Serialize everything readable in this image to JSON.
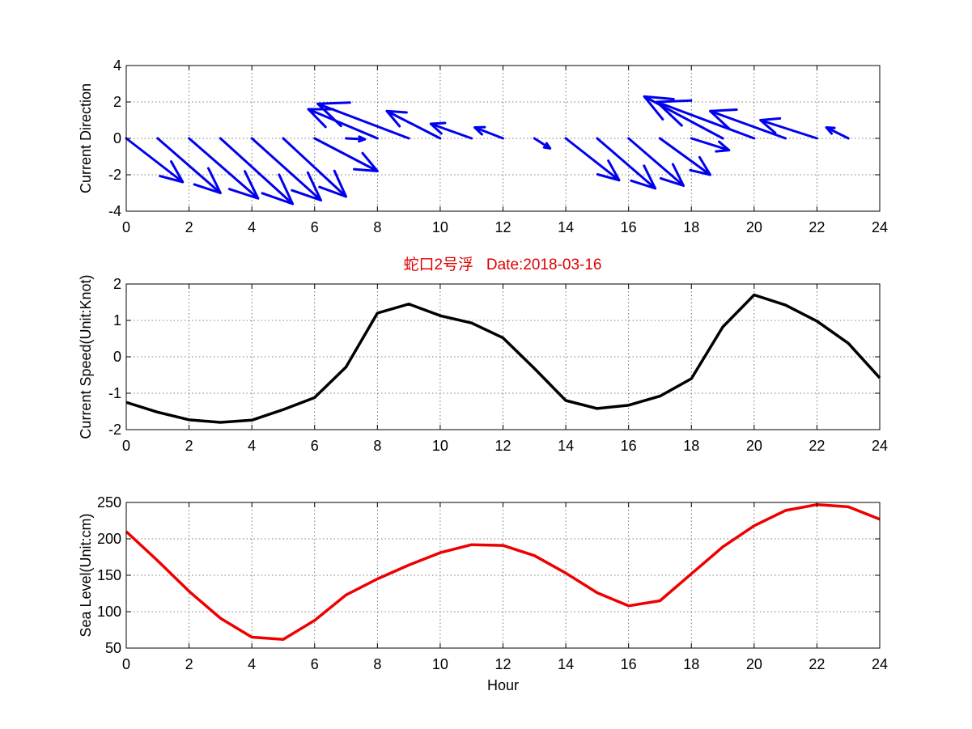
{
  "figure_title": "蛇口2号浮   Date:2018-03-16",
  "colors": {
    "direction": "#0000ee",
    "speed": "#000000",
    "sea_level": "#ee0000",
    "title": "#dd0000",
    "grid": "#555555"
  },
  "chart_data": [
    {
      "type": "quiver",
      "ylabel": "Current Direction",
      "xlim": [
        0,
        24
      ],
      "ylim": [
        -4,
        4
      ],
      "x_ticks": [
        "0",
        "2",
        "4",
        "6",
        "8",
        "10",
        "12",
        "14",
        "16",
        "18",
        "20",
        "22",
        "24"
      ],
      "y_ticks": [
        "4",
        "2",
        "0",
        "-2",
        "-4"
      ],
      "grid": true,
      "vectors": [
        {
          "x": 0,
          "u": 1.8,
          "v": -2.4
        },
        {
          "x": 1,
          "u": 2.0,
          "v": -3.0
        },
        {
          "x": 2,
          "u": 2.2,
          "v": -3.3
        },
        {
          "x": 3,
          "u": 2.3,
          "v": -3.6
        },
        {
          "x": 4,
          "u": 2.2,
          "v": -3.4
        },
        {
          "x": 5,
          "u": 2.0,
          "v": -3.2
        },
        {
          "x": 6,
          "u": 2.0,
          "v": -1.8
        },
        {
          "x": 7,
          "u": 0.6,
          "v": -0.05
        },
        {
          "x": 8,
          "u": -2.2,
          "v": 1.6
        },
        {
          "x": 9,
          "u": -2.9,
          "v": 1.9
        },
        {
          "x": 10,
          "u": -1.7,
          "v": 1.5
        },
        {
          "x": 11,
          "u": -1.3,
          "v": 0.8
        },
        {
          "x": 12,
          "u": -0.9,
          "v": 0.6
        },
        {
          "x": 13,
          "u": 0.5,
          "v": -0.55
        },
        {
          "x": 14,
          "u": 1.7,
          "v": -2.3
        },
        {
          "x": 15,
          "u": 1.85,
          "v": -2.75
        },
        {
          "x": 16,
          "u": 1.75,
          "v": -2.6
        },
        {
          "x": 17,
          "u": 1.6,
          "v": -2.0
        },
        {
          "x": 18,
          "u": 1.2,
          "v": -0.65
        },
        {
          "x": 19,
          "u": -2.5,
          "v": 2.3
        },
        {
          "x": 20,
          "u": -3.1,
          "v": 2.0
        },
        {
          "x": 21,
          "u": -2.4,
          "v": 1.5
        },
        {
          "x": 22,
          "u": -1.8,
          "v": 1.0
        },
        {
          "x": 23,
          "u": -0.7,
          "v": 0.6
        }
      ]
    },
    {
      "type": "line",
      "ylabel": "Current Speed(Unit:Knot)",
      "xlim": [
        0,
        24
      ],
      "ylim": [
        -2,
        2
      ],
      "x_ticks": [
        "0",
        "2",
        "4",
        "6",
        "8",
        "10",
        "12",
        "14",
        "16",
        "18",
        "20",
        "22",
        "24"
      ],
      "y_ticks": [
        "2",
        "1",
        "0",
        "-1",
        "-2"
      ],
      "grid": true,
      "x": [
        0,
        1,
        2,
        3,
        4,
        5,
        6,
        7,
        8,
        9,
        10,
        11,
        12,
        13,
        14,
        15,
        16,
        17,
        18,
        19,
        20,
        21,
        22,
        23,
        24
      ],
      "y": [
        -1.25,
        -1.52,
        -1.73,
        -1.8,
        -1.74,
        -1.45,
        -1.12,
        -0.28,
        1.2,
        1.45,
        1.13,
        0.93,
        0.52,
        -0.32,
        -1.2,
        -1.42,
        -1.33,
        -1.08,
        -0.6,
        0.82,
        1.7,
        1.42,
        0.98,
        0.37,
        -0.58
      ]
    },
    {
      "type": "line",
      "ylabel": "Sea Level(Unit:cm)",
      "xlabel": "Hour",
      "xlim": [
        0,
        24
      ],
      "ylim": [
        50,
        250
      ],
      "x_ticks": [
        "0",
        "2",
        "4",
        "6",
        "8",
        "10",
        "12",
        "14",
        "16",
        "18",
        "20",
        "22",
        "24"
      ],
      "y_ticks": [
        "250",
        "200",
        "150",
        "100",
        "50"
      ],
      "grid": true,
      "x": [
        0,
        1,
        2,
        3,
        4,
        5,
        6,
        7,
        8,
        9,
        10,
        11,
        12,
        13,
        14,
        15,
        16,
        17,
        18,
        19,
        20,
        21,
        22,
        23,
        24
      ],
      "y": [
        210,
        170,
        128,
        91,
        65,
        62,
        88,
        123,
        145,
        164,
        181,
        192,
        191,
        177,
        153,
        126,
        108,
        115,
        152,
        189,
        218,
        239,
        247,
        244,
        227
      ]
    }
  ]
}
